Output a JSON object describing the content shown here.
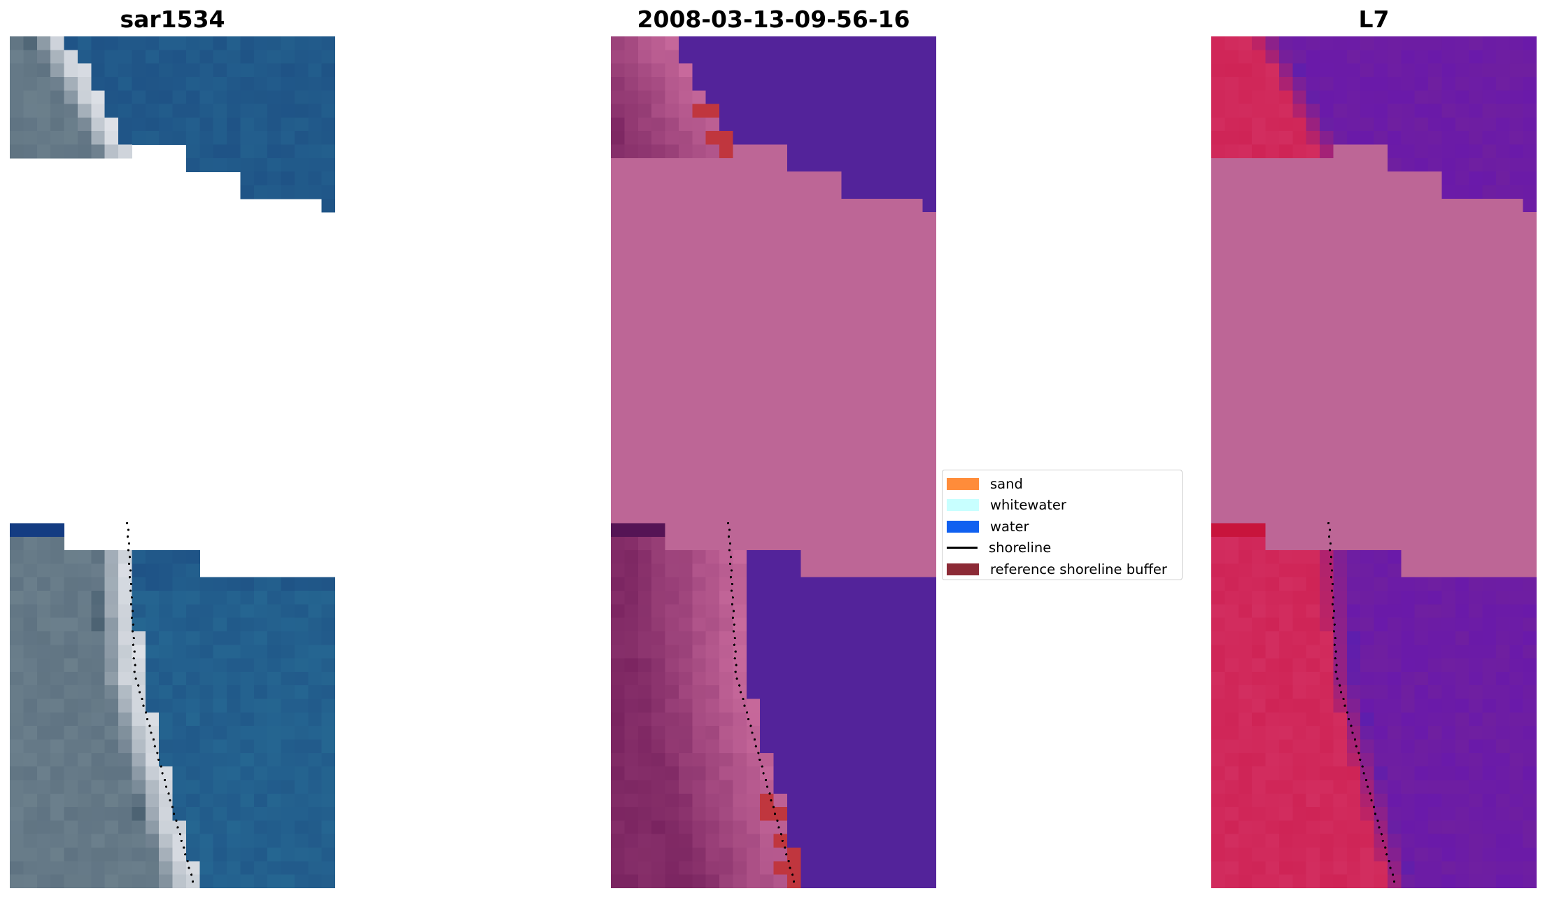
{
  "figure": {
    "titles": [
      "sar1534",
      "2008-03-13-09-56-16",
      "L7"
    ]
  },
  "legend": {
    "items": [
      {
        "label": "sand",
        "color": "#ff8c3a",
        "kind": "patch"
      },
      {
        "label": "whitewater",
        "color": "#c8ffff",
        "kind": "patch"
      },
      {
        "label": "water",
        "color": "#1060f0",
        "kind": "patch"
      },
      {
        "label": "shoreline",
        "color": "#000000",
        "kind": "line"
      },
      {
        "label": "reference shoreline buffer",
        "color": "#8c2a36",
        "kind": "patch"
      }
    ]
  },
  "colors": {
    "nodata": "#bd6696",
    "class_water": "#53239a",
    "class_sand_overlay": "#7a2460",
    "class_buffer": "#c0363e",
    "rgb_water": "#1f5386",
    "rgb_sand": "#dfe2e8",
    "mndwi_water": "#6f1fa0",
    "mndwi_land": "#cf2456"
  }
}
